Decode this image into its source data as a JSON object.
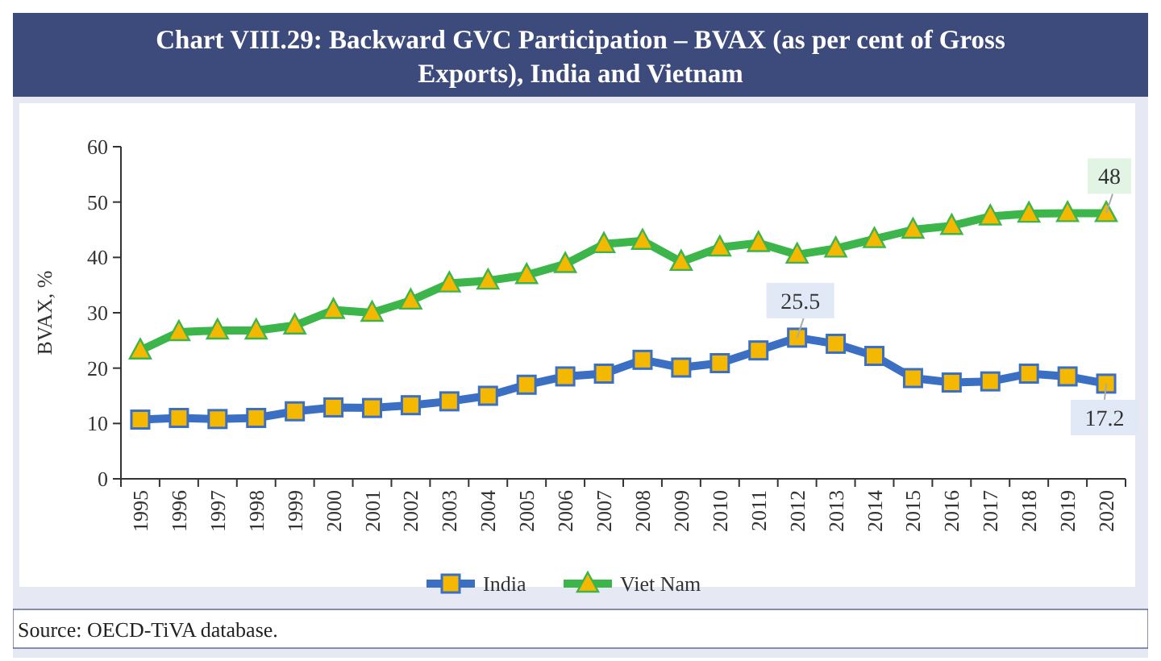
{
  "chart_data": {
    "type": "line",
    "title": "Chart VIII.29: Backward GVC Participation – BVAX (as per cent of Gross Exports), India and Vietnam",
    "ylabel": "BVAX, %",
    "categories": [
      "1995",
      "1996",
      "1997",
      "1998",
      "1999",
      "2000",
      "2001",
      "2002",
      "2003",
      "2004",
      "2005",
      "2006",
      "2007",
      "2008",
      "2009",
      "2010",
      "2011",
      "2012",
      "2013",
      "2014",
      "2015",
      "2016",
      "2017",
      "2018",
      "2019",
      "2020"
    ],
    "series": [
      {
        "name": "India",
        "color": "#3a6fc4",
        "marker": "square",
        "values": [
          10.7,
          11,
          10.8,
          11,
          12.2,
          12.9,
          12.8,
          13.3,
          14,
          15,
          17,
          18.5,
          19,
          21.5,
          20.1,
          20.9,
          23.2,
          25.5,
          24.4,
          22.2,
          18.2,
          17.4,
          17.6,
          19,
          18.5,
          17.2
        ]
      },
      {
        "name": "Viet Nam",
        "color": "#3cb54a",
        "marker": "triangle",
        "values": [
          23.2,
          26.5,
          26.8,
          26.8,
          27.7,
          30.5,
          30,
          32.2,
          35.3,
          35.8,
          36.8,
          38.8,
          42.4,
          43,
          39.2,
          41.8,
          42.6,
          40.5,
          41.6,
          43.3,
          45,
          45.7,
          47.4,
          47.9,
          48,
          48
        ]
      }
    ],
    "ylim": [
      0,
      60
    ],
    "yticks": [
      0,
      10,
      20,
      30,
      40,
      50,
      60
    ],
    "grid": false,
    "legend": "bottom",
    "line_style": "solid",
    "annotations": [
      {
        "text": "25.5",
        "x": "2012",
        "y": 25.5
      },
      {
        "text": "48",
        "x": "2020",
        "y": 48
      },
      {
        "text": "17.2",
        "x": "2020",
        "y": 17.2
      },
      "Source: OECD-TiVA database."
    ]
  }
}
